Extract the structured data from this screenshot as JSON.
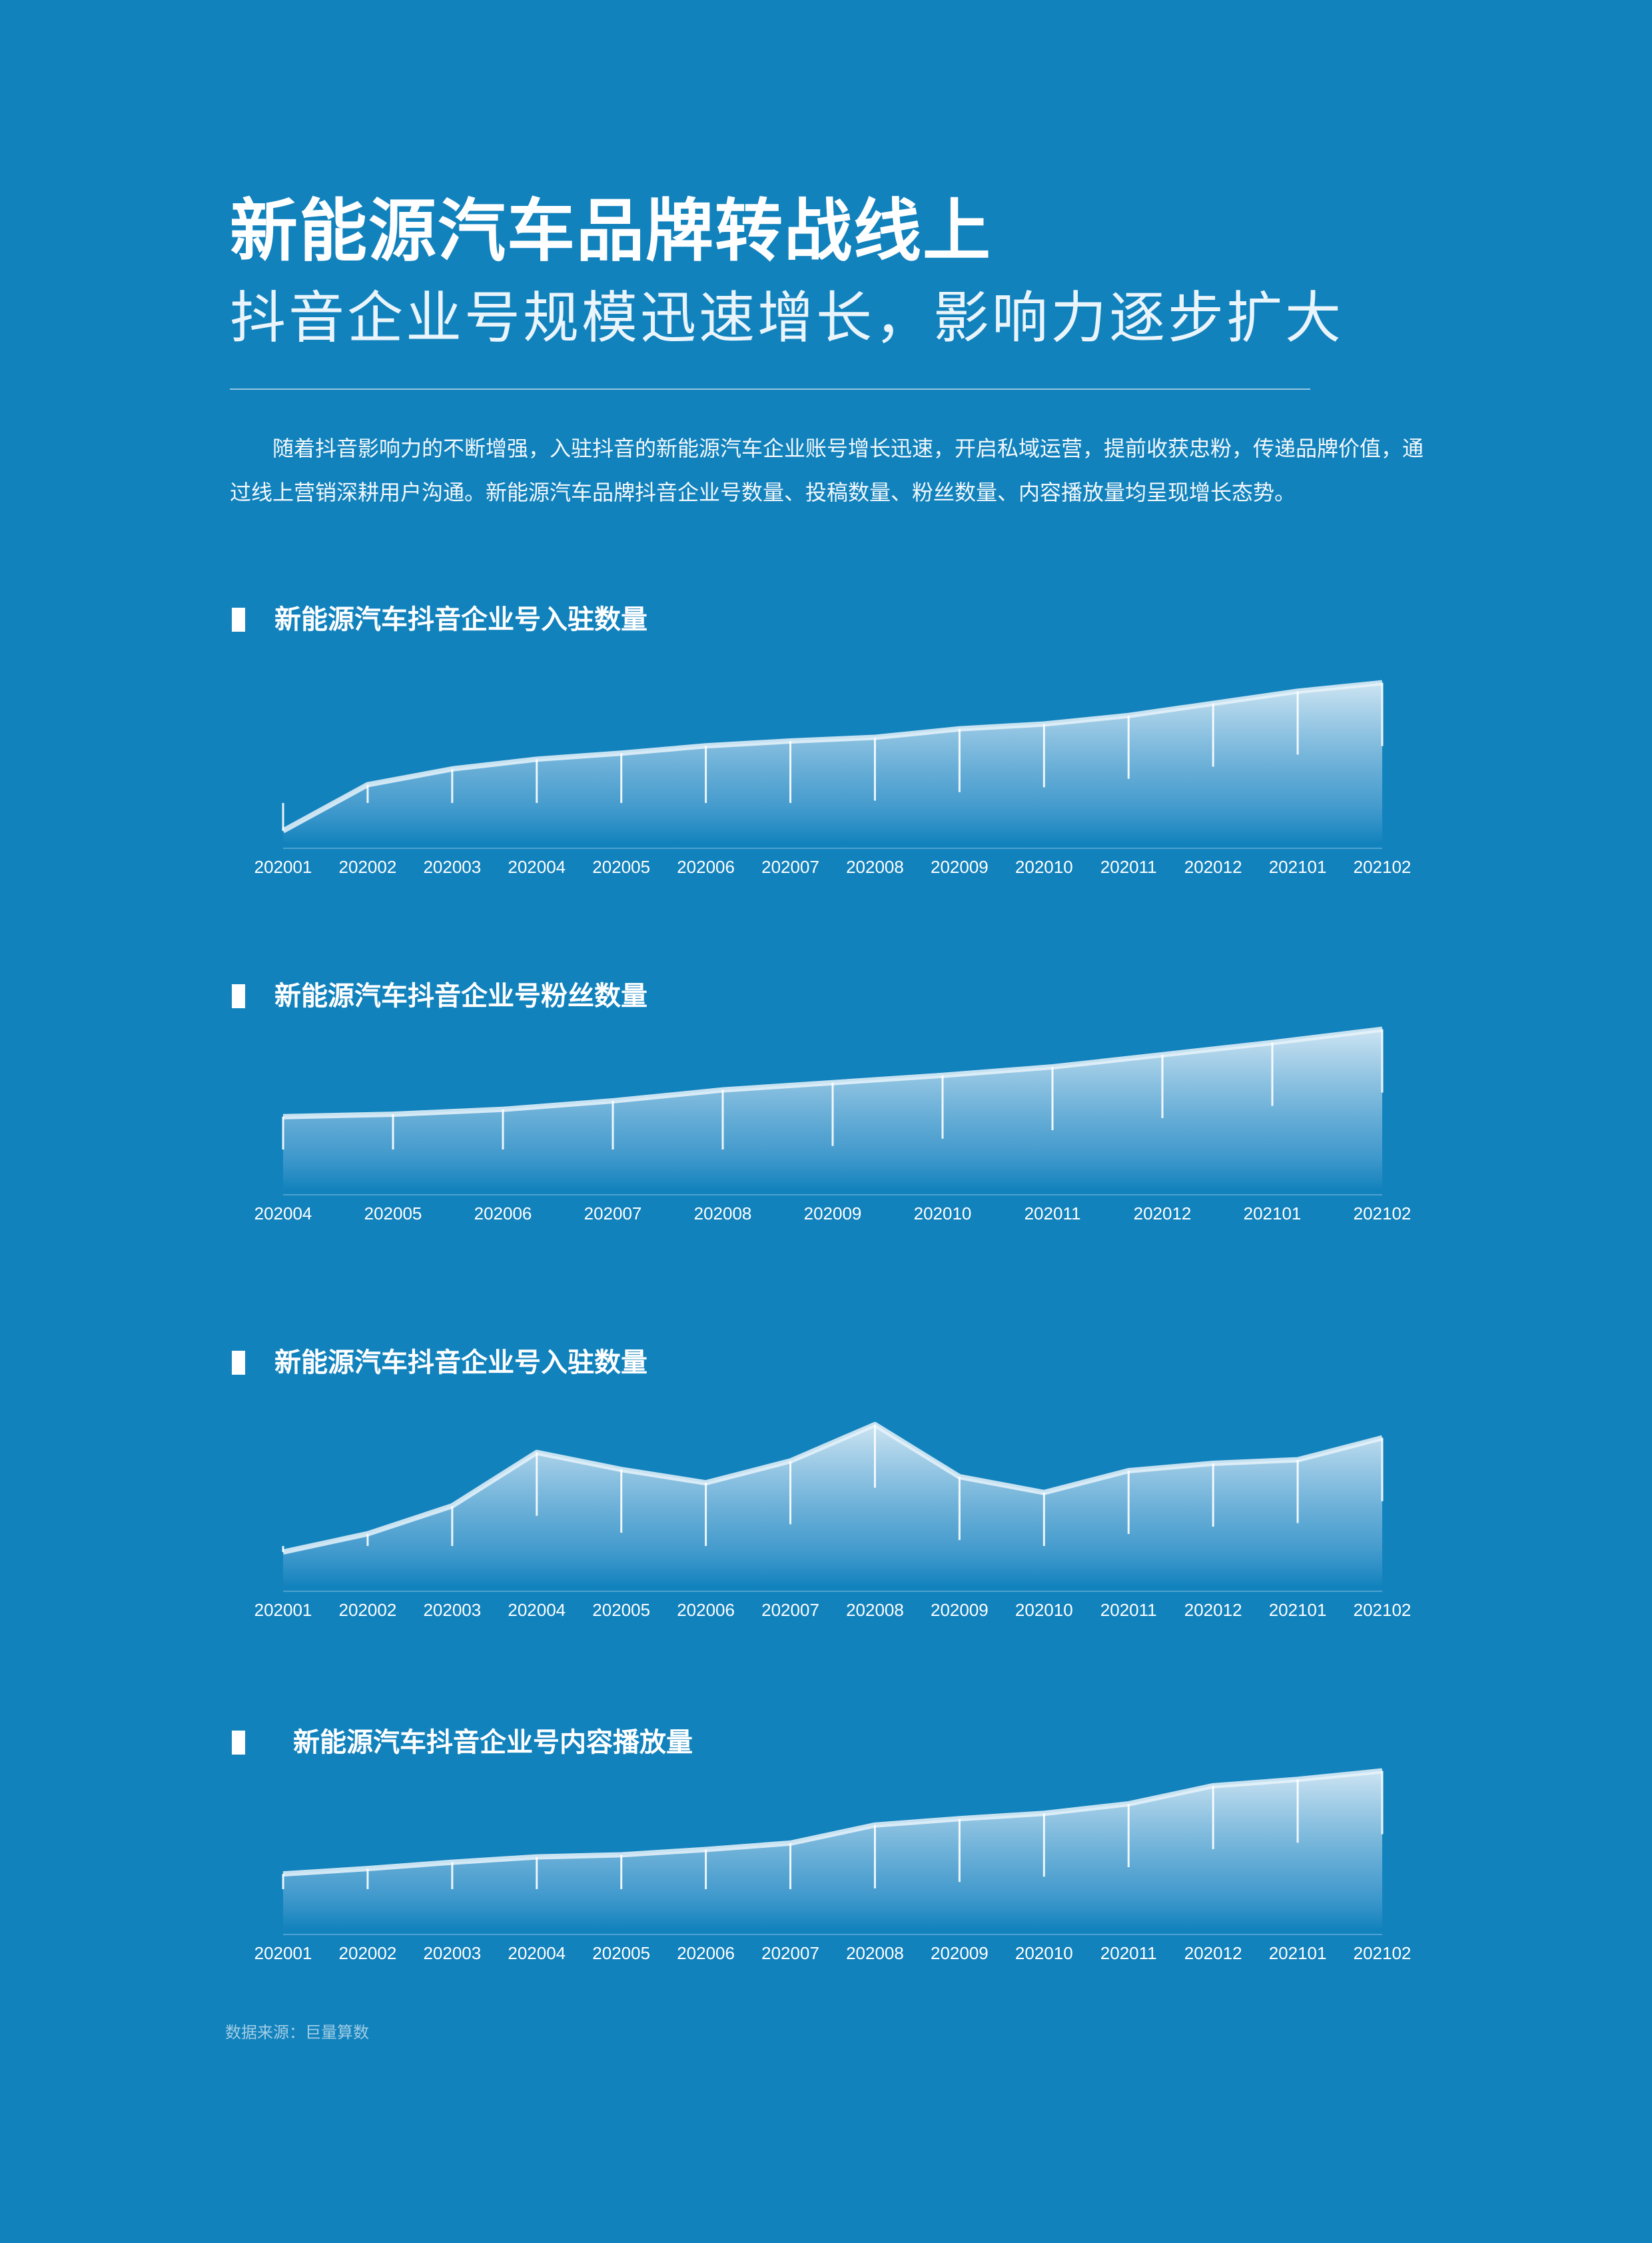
{
  "header": {
    "title": "新能源汽车品牌转战线上",
    "subtitle": "抖音企业号规模迅速增长，影响力逐步扩大",
    "intro": "随着抖音影响力的不断增强，入驻抖音的新能源汽车企业账号增长迅速，开启私域运营，提前收获忠粉，传递品牌价值，通过线上营销深耕用户沟通。新能源汽车品牌抖音企业号数量、投稿数量、粉丝数量、内容播放量均呈现增长态势。"
  },
  "colors": {
    "background": "#1282bd",
    "area_top": "#d6e9f5",
    "area_bottom": "#1282bd",
    "line": "#e8f3fa"
  },
  "source": "数据来源：巨量算数",
  "chart_data": [
    {
      "type": "area",
      "title": "新能源汽车抖音企业号入驻数量",
      "x": [
        "202001",
        "202002",
        "202003",
        "202004",
        "202005",
        "202006",
        "202007",
        "202008",
        "202009",
        "202010",
        "202011",
        "202012",
        "202101",
        "202102"
      ],
      "values": [
        10,
        48,
        61,
        69,
        74,
        80,
        84,
        87,
        94,
        98,
        105,
        115,
        125,
        132
      ],
      "ylim": [
        0,
        140
      ],
      "grid": false,
      "legend": "none"
    },
    {
      "type": "area",
      "title": "新能源汽车抖音企业号粉丝数量",
      "x": [
        "202004",
        "202005",
        "202006",
        "202007",
        "202008",
        "202009",
        "202010",
        "202011",
        "202012",
        "202101",
        "202102"
      ],
      "values": [
        60,
        62,
        66,
        73,
        82,
        88,
        94,
        101,
        111,
        121,
        132
      ],
      "ylim": [
        0,
        140
      ],
      "grid": false,
      "legend": "none"
    },
    {
      "type": "area",
      "title": "新能源汽车抖音企业号入驻数量",
      "x": [
        "202001",
        "202002",
        "202003",
        "202004",
        "202005",
        "202006",
        "202007",
        "202008",
        "202009",
        "202010",
        "202011",
        "202012",
        "202101",
        "202102"
      ],
      "values": [
        28,
        43,
        66,
        110,
        96,
        85,
        103,
        133,
        90,
        77,
        95,
        101,
        104,
        122
      ],
      "ylim": [
        0,
        140
      ],
      "grid": false,
      "legend": "none"
    },
    {
      "type": "area",
      "title": "新能源汽车抖音企业号内容播放量",
      "x": [
        "202001",
        "202002",
        "202003",
        "202004",
        "202005",
        "202006",
        "202007",
        "202008",
        "202009",
        "202010",
        "202011",
        "202012",
        "202101",
        "202102"
      ],
      "values": [
        52,
        57,
        63,
        68,
        70,
        75,
        81,
        98,
        104,
        109,
        118,
        135,
        141,
        149
      ],
      "ylim": [
        0,
        160
      ],
      "grid": false,
      "legend": "none"
    }
  ]
}
